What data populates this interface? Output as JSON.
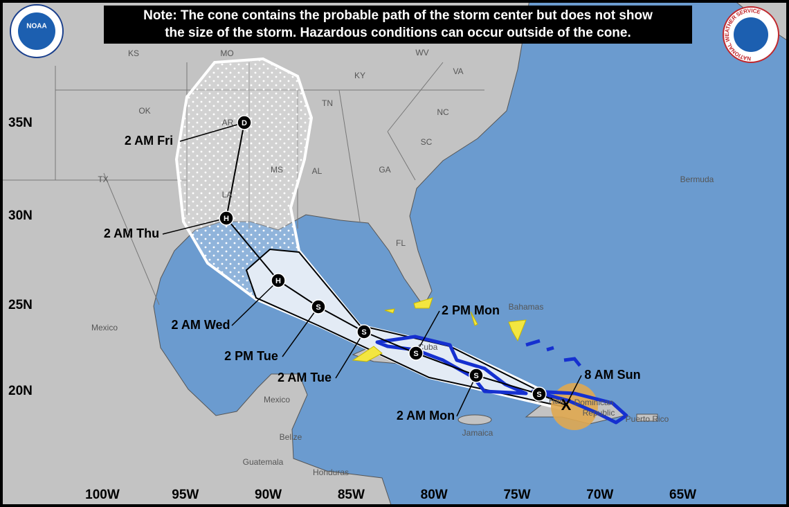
{
  "note": [
    "Note: The cone contains the probable path of the storm center but does not show",
    "the size of the storm. Hazardous conditions can occur outside of the cone."
  ],
  "logos": {
    "left": "NOAA",
    "right": "NATIONAL WEATHER SERVICE"
  },
  "latitude_labels": [
    "35N",
    "30N",
    "25N",
    "20N"
  ],
  "longitude_labels": [
    "100W",
    "95W",
    "90W",
    "85W",
    "80W",
    "75W",
    "70W",
    "65W"
  ],
  "places": [
    "KS",
    "MO",
    "WV",
    "VA",
    "KY",
    "OK",
    "TN",
    "NC",
    "AR",
    "SC",
    "MS",
    "AL",
    "GA",
    "TX",
    "LA",
    "FL",
    "Bermuda",
    "Bahamas",
    "Mexico",
    "Cuba",
    "Haiti",
    "Dominican",
    "Republic",
    "Mexico",
    "Belize",
    "Jamaica",
    "Puerto Rico",
    "Guatemala",
    "Honduras"
  ],
  "forecast_points": [
    {
      "label": "2 AM Fri",
      "symbol": "D"
    },
    {
      "label": "2 AM Thu",
      "symbol": "H"
    },
    {
      "label": "2 AM Wed",
      "symbol": "H"
    },
    {
      "label": "2 PM Tue",
      "symbol": "S"
    },
    {
      "label": "2 AM Tue",
      "symbol": "S"
    },
    {
      "label": "2 PM Mon",
      "symbol": "S"
    },
    {
      "label": "2 AM Mon",
      "symbol": "S"
    },
    {
      "symbol": "S"
    },
    {
      "label": "8 AM Sun",
      "symbol": "X"
    }
  ]
}
